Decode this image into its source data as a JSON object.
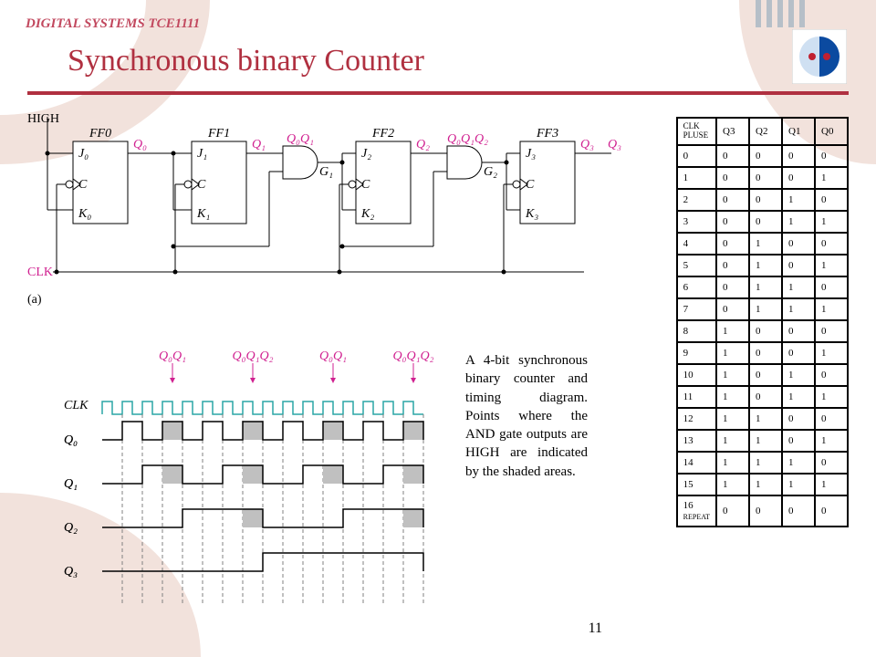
{
  "course_code": "DIGITAL SYSTEMS TCE1111",
  "title": "Synchronous binary Counter",
  "description": "A 4-bit synchronous binary counter and timing diagram. Points where the AND gate outputs are HIGH are indicated by the shaded areas.",
  "page_number": "11",
  "truth_table": {
    "columns": [
      "CLK PLUSE",
      "Q3",
      "Q2",
      "Q1",
      "Q0"
    ],
    "rows": [
      [
        "0",
        "0",
        "0",
        "0",
        "0"
      ],
      [
        "1",
        "0",
        "0",
        "0",
        "1"
      ],
      [
        "2",
        "0",
        "0",
        "1",
        "0"
      ],
      [
        "3",
        "0",
        "0",
        "1",
        "1"
      ],
      [
        "4",
        "0",
        "1",
        "0",
        "0"
      ],
      [
        "5",
        "0",
        "1",
        "0",
        "1"
      ],
      [
        "6",
        "0",
        "1",
        "1",
        "0"
      ],
      [
        "7",
        "0",
        "1",
        "1",
        "1"
      ],
      [
        "8",
        "1",
        "0",
        "0",
        "0"
      ],
      [
        "9",
        "1",
        "0",
        "0",
        "1"
      ],
      [
        "10",
        "1",
        "0",
        "1",
        "0"
      ],
      [
        "11",
        "1",
        "0",
        "1",
        "1"
      ],
      [
        "12",
        "1",
        "1",
        "0",
        "0"
      ],
      [
        "13",
        "1",
        "1",
        "0",
        "1"
      ],
      [
        "14",
        "1",
        "1",
        "1",
        "0"
      ],
      [
        "15",
        "1",
        "1",
        "1",
        "1"
      ],
      [
        "16 REPEAT",
        "0",
        "0",
        "0",
        "0"
      ]
    ]
  },
  "circuit": {
    "labels": {
      "high": "HIGH",
      "clk": "CLK",
      "ff": [
        "FF0",
        "FF1",
        "FF2",
        "FF3"
      ],
      "q": [
        "Q₀",
        "Q₁",
        "Q₂",
        "Q₃"
      ],
      "g": [
        "G₁",
        "G₂"
      ],
      "gout": [
        "Q₀Q₁",
        "Q₀Q₁Q₂"
      ],
      "jk": [
        [
          "J₀",
          "K₀"
        ],
        [
          "J₁",
          "K₁"
        ],
        [
          "J₂",
          "K₂"
        ],
        [
          "J₃",
          "K₃"
        ]
      ],
      "c": "C",
      "sub_a": "(a)"
    },
    "colors": {
      "magenta": "#d02090",
      "black": "#000000"
    }
  },
  "timing": {
    "signals": [
      "CLK",
      "Q₀",
      "Q₁",
      "Q₂",
      "Q₃"
    ],
    "top_labels": [
      "Q₀Q₁",
      "Q₀Q₁Q₂",
      "Q₀Q₁",
      "Q₀Q₁Q₂"
    ],
    "clk_color": "#2aa5a5",
    "q_color": "#000000",
    "dash_color": "#808080",
    "shade_color": "#c0c0c0",
    "label_color": "#d02090",
    "pulses": 16,
    "q0": [
      0,
      1,
      0,
      1,
      0,
      1,
      0,
      1,
      0,
      1,
      0,
      1,
      0,
      1,
      0,
      1,
      0
    ],
    "q1": [
      0,
      0,
      1,
      1,
      0,
      0,
      1,
      1,
      0,
      0,
      1,
      1,
      0,
      0,
      1,
      1,
      0
    ],
    "q2": [
      0,
      0,
      0,
      0,
      1,
      1,
      1,
      1,
      0,
      0,
      0,
      0,
      1,
      1,
      1,
      1,
      0
    ],
    "q3": [
      0,
      0,
      0,
      0,
      0,
      0,
      0,
      0,
      1,
      1,
      1,
      1,
      1,
      1,
      1,
      1,
      0
    ],
    "shade_q0": [
      3,
      7,
      11,
      15
    ],
    "shade_q1": [
      3,
      7,
      11,
      15
    ],
    "shade_q2": [
      7,
      15
    ]
  },
  "logo": {
    "outer": "#0b4aa0",
    "inner_pale": "#cfe0f2",
    "dots": "#c02030"
  }
}
